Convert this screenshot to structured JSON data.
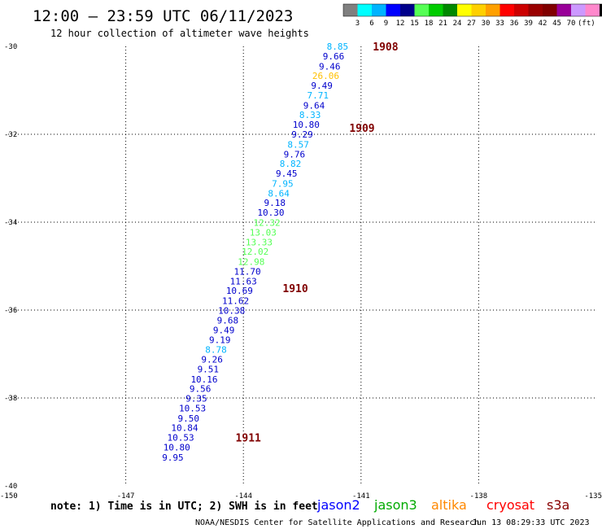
{
  "header": {
    "title": "12:00 – 23:59 UTC 06/11/2023",
    "subtitle": "12 hour collection of altimeter wave heights"
  },
  "legend": {
    "unit": "(ft)",
    "colors": [
      "#808080",
      "#00ffff",
      "#00b4ff",
      "#0000ff",
      "#00008b",
      "#55ff55",
      "#00cc00",
      "#008800",
      "#ffff00",
      "#ffd000",
      "#ffa000",
      "#ff0000",
      "#cc0000",
      "#990000",
      "#800000",
      "#990099",
      "#cc99ff",
      "#ff88cc",
      "#000000"
    ],
    "labels": [
      "3",
      "6",
      "9",
      "12",
      "15",
      "18",
      "21",
      "24",
      "27",
      "30",
      "33",
      "36",
      "39",
      "42",
      "45",
      "70"
    ]
  },
  "footer": {
    "note": "note: 1) Time is in UTC; 2) SWH is in feet",
    "credit": "NOAA/NESDIS Center for Satellite Applications and Research",
    "timestamp": "Jun 13 08:29:33 UTC 2023"
  },
  "satellites": [
    {
      "name": "jason2",
      "color": "#0000ff"
    },
    {
      "name": "jason3",
      "color": "#00aa00"
    },
    {
      "name": "altika",
      "color": "#ff8800"
    },
    {
      "name": "cryosat",
      "color": "#ff0000"
    },
    {
      "name": "s3a",
      "color": "#880000"
    }
  ],
  "chart_data": {
    "type": "scatter",
    "xlim": [
      -150,
      -135
    ],
    "ylim": [
      -40,
      -30
    ],
    "x_ticks": [
      "-150",
      "-147",
      "-144",
      "-141",
      "-138",
      "-135"
    ],
    "y_ticks": [
      "-30",
      "-32",
      "-34",
      "-36",
      "-38",
      "-40"
    ],
    "grid": true,
    "time_labels": [
      {
        "label": "1908",
        "lon": -140.7,
        "lat": -30.0
      },
      {
        "label": "1909",
        "lon": -141.3,
        "lat": -31.85
      },
      {
        "label": "1910",
        "lon": -143.0,
        "lat": -35.5
      },
      {
        "label": "1911",
        "lon": -144.2,
        "lat": -38.9
      }
    ],
    "points": [
      {
        "lon": -141.6,
        "lat": -30.0,
        "value": "8.85",
        "color": "#00b4ff"
      },
      {
        "lon": -141.7,
        "lat": -30.22,
        "value": "9.66",
        "color": "#0000cc"
      },
      {
        "lon": -141.8,
        "lat": -30.45,
        "value": "9.46",
        "color": "#0000cc"
      },
      {
        "lon": -141.9,
        "lat": -30.67,
        "value": "26.06",
        "color": "#ffc000"
      },
      {
        "lon": -142.0,
        "lat": -30.89,
        "value": "9.49",
        "color": "#0000cc"
      },
      {
        "lon": -142.1,
        "lat": -31.11,
        "value": "7.71",
        "color": "#00b4ff"
      },
      {
        "lon": -142.2,
        "lat": -31.34,
        "value": "9.64",
        "color": "#0000cc"
      },
      {
        "lon": -142.3,
        "lat": -31.56,
        "value": "8.33",
        "color": "#00b4ff"
      },
      {
        "lon": -142.4,
        "lat": -31.78,
        "value": "10.80",
        "color": "#0000cc"
      },
      {
        "lon": -142.5,
        "lat": -32.0,
        "value": "9.29",
        "color": "#0000cc"
      },
      {
        "lon": -142.6,
        "lat": -32.23,
        "value": "8.57",
        "color": "#00b4ff"
      },
      {
        "lon": -142.7,
        "lat": -32.45,
        "value": "9.76",
        "color": "#0000cc"
      },
      {
        "lon": -142.8,
        "lat": -32.67,
        "value": "8.82",
        "color": "#00b4ff"
      },
      {
        "lon": -142.9,
        "lat": -32.89,
        "value": "9.45",
        "color": "#0000cc"
      },
      {
        "lon": -143.0,
        "lat": -33.12,
        "value": "7.95",
        "color": "#00b4ff"
      },
      {
        "lon": -143.1,
        "lat": -33.34,
        "value": "8.64",
        "color": "#00b4ff"
      },
      {
        "lon": -143.2,
        "lat": -33.56,
        "value": "9.18",
        "color": "#0000cc"
      },
      {
        "lon": -143.3,
        "lat": -33.78,
        "value": "10.30",
        "color": "#0000cc"
      },
      {
        "lon": -143.4,
        "lat": -34.01,
        "value": "12.32",
        "color": "#55ff55"
      },
      {
        "lon": -143.5,
        "lat": -34.23,
        "value": "13.03",
        "color": "#55ff55"
      },
      {
        "lon": -143.6,
        "lat": -34.45,
        "value": "13.33",
        "color": "#55ff55"
      },
      {
        "lon": -143.7,
        "lat": -34.67,
        "value": "12.02",
        "color": "#55ff55"
      },
      {
        "lon": -143.8,
        "lat": -34.9,
        "value": "12.98",
        "color": "#55ff55"
      },
      {
        "lon": -143.9,
        "lat": -35.12,
        "value": "11.70",
        "color": "#0000cc"
      },
      {
        "lon": -144.0,
        "lat": -35.34,
        "value": "11.63",
        "color": "#0000cc"
      },
      {
        "lon": -144.1,
        "lat": -35.56,
        "value": "10.69",
        "color": "#0000cc"
      },
      {
        "lon": -144.2,
        "lat": -35.79,
        "value": "11.62",
        "color": "#0000cc"
      },
      {
        "lon": -144.3,
        "lat": -36.01,
        "value": "10.38",
        "color": "#0000cc"
      },
      {
        "lon": -144.4,
        "lat": -36.23,
        "value": "9.68",
        "color": "#0000cc"
      },
      {
        "lon": -144.5,
        "lat": -36.45,
        "value": "9.49",
        "color": "#0000cc"
      },
      {
        "lon": -144.6,
        "lat": -36.68,
        "value": "9.19",
        "color": "#0000cc"
      },
      {
        "lon": -144.7,
        "lat": -36.9,
        "value": "8.78",
        "color": "#00b4ff"
      },
      {
        "lon": -144.8,
        "lat": -37.12,
        "value": "9.26",
        "color": "#0000cc"
      },
      {
        "lon": -144.9,
        "lat": -37.34,
        "value": "9.51",
        "color": "#0000cc"
      },
      {
        "lon": -145.0,
        "lat": -37.57,
        "value": "10.16",
        "color": "#0000cc"
      },
      {
        "lon": -145.1,
        "lat": -37.79,
        "value": "9.56",
        "color": "#0000cc"
      },
      {
        "lon": -145.2,
        "lat": -38.01,
        "value": "9.35",
        "color": "#0000cc"
      },
      {
        "lon": -145.3,
        "lat": -38.23,
        "value": "10.53",
        "color": "#0000cc"
      },
      {
        "lon": -145.4,
        "lat": -38.46,
        "value": "9.50",
        "color": "#0000cc"
      },
      {
        "lon": -145.5,
        "lat": -38.68,
        "value": "10.84",
        "color": "#0000cc"
      },
      {
        "lon": -145.6,
        "lat": -38.9,
        "value": "10.53",
        "color": "#0000cc"
      },
      {
        "lon": -145.7,
        "lat": -39.12,
        "value": "10.80",
        "color": "#0000cc"
      },
      {
        "lon": -145.8,
        "lat": -39.35,
        "value": "9.95",
        "color": "#0000cc"
      }
    ]
  }
}
